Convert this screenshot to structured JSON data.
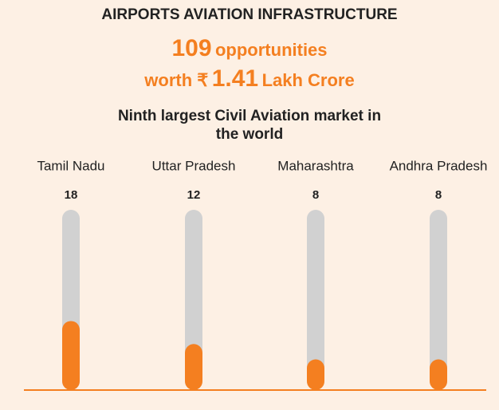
{
  "chart_data": {
    "type": "bar",
    "title": "AIRPORTS AVIATION INFRASTRUCTURE",
    "headline": {
      "count": "109",
      "count_text": "opportunities",
      "worth": "worth ₹",
      "amount": "1.41",
      "amount_unit": "Lakh Crore"
    },
    "subtitle": "Ninth largest Civil Aviation market in the world",
    "categories": [
      "Tamil Nadu",
      "Uttar Pradesh",
      "Maharashtra",
      "Andhra Pradesh"
    ],
    "values": [
      18,
      12,
      8,
      8
    ],
    "ylim": [
      0,
      47
    ],
    "color": "#f47f20",
    "track_color": "#d1d1d1"
  }
}
